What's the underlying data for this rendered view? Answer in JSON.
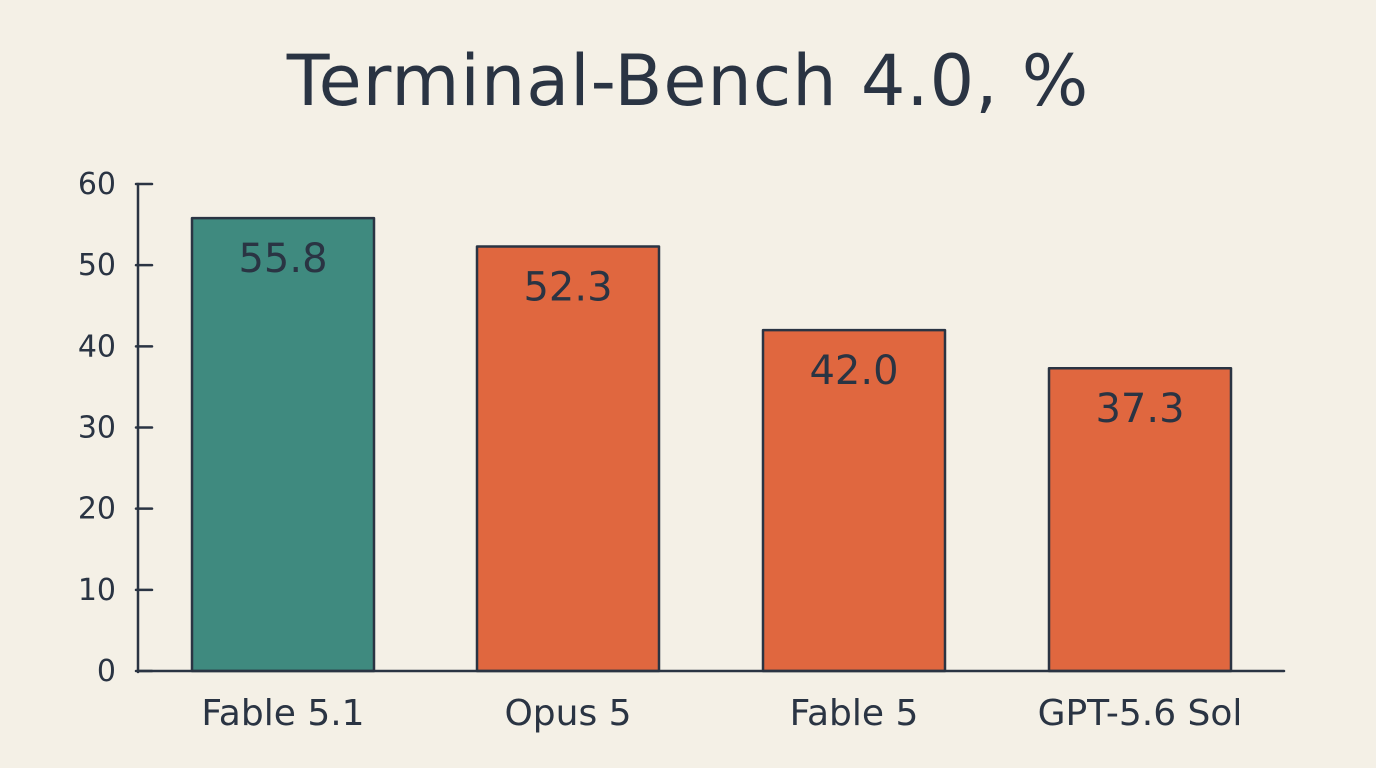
{
  "chart_data": {
    "type": "bar",
    "title": "Terminal-Bench 4.0, %",
    "categories": [
      "Fable 5.1",
      "Opus 5",
      "Fable 5",
      "GPT-5.6 Sol"
    ],
    "values": [
      55.8,
      52.3,
      42.0,
      37.3
    ],
    "value_labels": [
      "55.8",
      "52.3",
      "42.0",
      "37.3"
    ],
    "ylim": [
      0,
      60
    ],
    "yticks": [
      0,
      10,
      20,
      30,
      40,
      50,
      60
    ],
    "bar_colors": [
      "#3f8a7f",
      "#e0673f",
      "#e0673f",
      "#e0673f"
    ],
    "grid": false,
    "xlabel": "",
    "ylabel": ""
  },
  "colors": {
    "background": "#f4f0e6",
    "ink": "#2a3443",
    "highlight": "#3f8a7f",
    "accent": "#e0673f"
  }
}
